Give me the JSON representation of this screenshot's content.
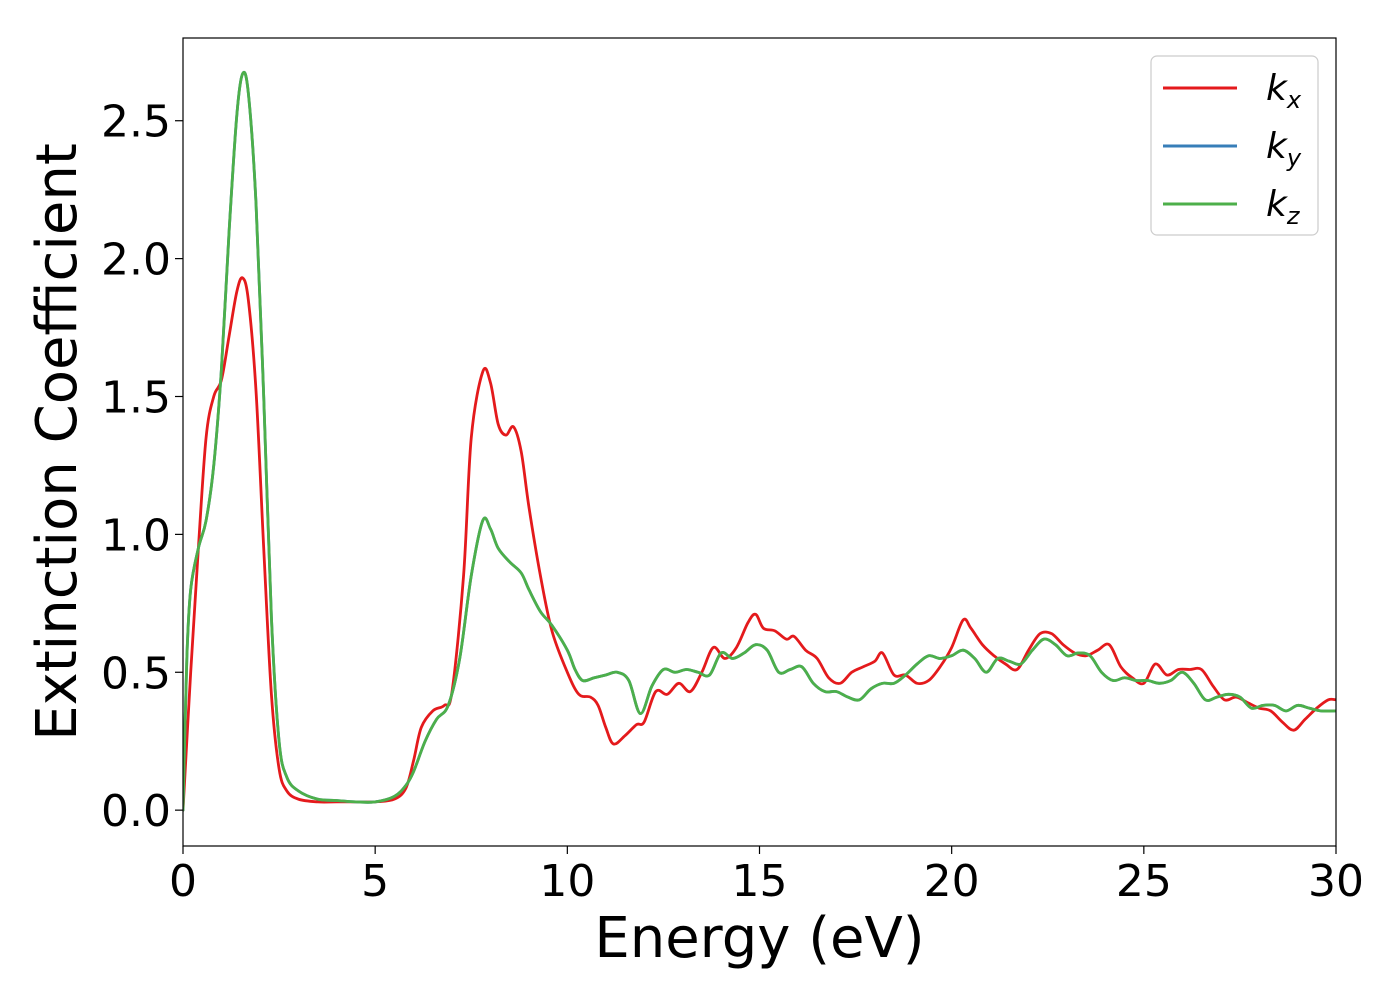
{
  "chart_data": {
    "type": "line",
    "title": "",
    "xlabel": "Energy (eV)",
    "ylabel": "Extinction Coefficient",
    "xlim": [
      0,
      30
    ],
    "ylim": [
      -0.13,
      2.8
    ],
    "xticks": [
      0,
      5,
      10,
      15,
      20,
      25,
      30
    ],
    "xtick_labels": [
      "0",
      "5",
      "10",
      "15",
      "20",
      "25",
      "30"
    ],
    "yticks": [
      0.0,
      0.5,
      1.0,
      1.5,
      2.0,
      2.5
    ],
    "ytick_labels": [
      "0.0",
      "0.5",
      "1.0",
      "1.5",
      "2.0",
      "2.5"
    ],
    "grid": false,
    "legend_position": "top-right",
    "series": [
      {
        "name": "k_x",
        "label_main": "k",
        "label_sub": "x",
        "color": "#e41a1c",
        "x": [
          0,
          0.2,
          0.4,
          0.6,
          0.8,
          1.0,
          1.2,
          1.4,
          1.55,
          1.7,
          1.9,
          2.1,
          2.3,
          2.5,
          2.7,
          3.0,
          3.5,
          4.0,
          4.5,
          5.0,
          5.5,
          5.8,
          6.0,
          6.2,
          6.5,
          6.8,
          7.0,
          7.3,
          7.5,
          7.8,
          8.0,
          8.2,
          8.4,
          8.6,
          8.8,
          9.0,
          9.3,
          9.6,
          10.0,
          10.3,
          10.6,
          10.8,
          11.0,
          11.2,
          11.5,
          11.8,
          12.0,
          12.3,
          12.6,
          12.9,
          13.2,
          13.5,
          13.8,
          14.1,
          14.4,
          14.7,
          14.9,
          15.1,
          15.4,
          15.7,
          15.9,
          16.2,
          16.5,
          16.8,
          17.1,
          17.4,
          17.7,
          18.0,
          18.2,
          18.5,
          18.8,
          19.1,
          19.4,
          19.7,
          20.0,
          20.3,
          20.5,
          20.8,
          21.1,
          21.4,
          21.7,
          22.0,
          22.3,
          22.6,
          22.9,
          23.2,
          23.5,
          23.8,
          24.1,
          24.4,
          24.7,
          25.0,
          25.3,
          25.6,
          25.9,
          26.2,
          26.5,
          26.8,
          27.1,
          27.4,
          27.7,
          28.0,
          28.3,
          28.6,
          28.9,
          29.2,
          29.5,
          29.8,
          30.0
        ],
        "y": [
          0.0,
          0.5,
          0.95,
          1.35,
          1.5,
          1.56,
          1.72,
          1.88,
          1.93,
          1.85,
          1.52,
          0.95,
          0.42,
          0.15,
          0.07,
          0.04,
          0.03,
          0.03,
          0.03,
          0.03,
          0.04,
          0.08,
          0.18,
          0.3,
          0.36,
          0.38,
          0.43,
          0.85,
          1.35,
          1.59,
          1.55,
          1.4,
          1.36,
          1.39,
          1.3,
          1.1,
          0.85,
          0.65,
          0.5,
          0.42,
          0.41,
          0.38,
          0.3,
          0.24,
          0.27,
          0.31,
          0.32,
          0.43,
          0.42,
          0.46,
          0.43,
          0.5,
          0.59,
          0.55,
          0.59,
          0.68,
          0.71,
          0.66,
          0.65,
          0.62,
          0.63,
          0.58,
          0.55,
          0.48,
          0.46,
          0.5,
          0.52,
          0.54,
          0.57,
          0.49,
          0.49,
          0.46,
          0.47,
          0.52,
          0.59,
          0.69,
          0.66,
          0.6,
          0.56,
          0.53,
          0.51,
          0.58,
          0.64,
          0.64,
          0.6,
          0.57,
          0.56,
          0.58,
          0.6,
          0.52,
          0.48,
          0.46,
          0.53,
          0.49,
          0.51,
          0.51,
          0.51,
          0.45,
          0.4,
          0.41,
          0.39,
          0.37,
          0.36,
          0.32,
          0.29,
          0.33,
          0.37,
          0.4,
          0.4
        ]
      },
      {
        "name": "k_y",
        "label_main": "k",
        "label_sub": "y",
        "color": "#377eb8",
        "x": [
          0,
          0.1,
          0.2,
          0.4,
          0.6,
          0.8,
          1.0,
          1.2,
          1.4,
          1.55,
          1.7,
          1.9,
          2.1,
          2.3,
          2.5,
          2.7,
          3.0,
          3.5,
          4.0,
          4.5,
          5.0,
          5.5,
          5.8,
          6.0,
          6.3,
          6.6,
          6.9,
          7.2,
          7.5,
          7.8,
          8.0,
          8.2,
          8.5,
          8.8,
          9.0,
          9.3,
          9.6,
          10.0,
          10.2,
          10.4,
          10.7,
          11.0,
          11.3,
          11.6,
          11.9,
          12.2,
          12.5,
          12.8,
          13.1,
          13.4,
          13.7,
          14.0,
          14.3,
          14.6,
          14.9,
          15.2,
          15.5,
          15.8,
          16.1,
          16.4,
          16.7,
          17.0,
          17.3,
          17.6,
          17.9,
          18.2,
          18.5,
          18.8,
          19.1,
          19.4,
          19.7,
          20.0,
          20.3,
          20.6,
          20.9,
          21.2,
          21.5,
          21.8,
          22.1,
          22.4,
          22.7,
          23.0,
          23.3,
          23.6,
          23.9,
          24.2,
          24.5,
          24.8,
          25.1,
          25.4,
          25.7,
          26.0,
          26.3,
          26.6,
          26.9,
          27.2,
          27.5,
          27.8,
          28.1,
          28.4,
          28.7,
          29.0,
          29.3,
          29.6,
          30.0
        ],
        "y": [
          0.0,
          0.55,
          0.8,
          0.95,
          1.05,
          1.25,
          1.6,
          2.1,
          2.52,
          2.67,
          2.6,
          2.2,
          1.5,
          0.7,
          0.25,
          0.12,
          0.07,
          0.04,
          0.035,
          0.03,
          0.03,
          0.05,
          0.09,
          0.14,
          0.25,
          0.33,
          0.38,
          0.55,
          0.85,
          1.05,
          1.02,
          0.95,
          0.9,
          0.86,
          0.8,
          0.72,
          0.67,
          0.58,
          0.51,
          0.47,
          0.48,
          0.49,
          0.5,
          0.47,
          0.35,
          0.45,
          0.51,
          0.5,
          0.51,
          0.5,
          0.49,
          0.57,
          0.55,
          0.57,
          0.6,
          0.58,
          0.5,
          0.51,
          0.52,
          0.46,
          0.43,
          0.43,
          0.41,
          0.4,
          0.44,
          0.46,
          0.46,
          0.49,
          0.53,
          0.56,
          0.55,
          0.56,
          0.58,
          0.55,
          0.5,
          0.55,
          0.54,
          0.53,
          0.58,
          0.62,
          0.6,
          0.56,
          0.57,
          0.56,
          0.5,
          0.47,
          0.48,
          0.47,
          0.47,
          0.46,
          0.47,
          0.5,
          0.46,
          0.4,
          0.41,
          0.42,
          0.41,
          0.37,
          0.38,
          0.38,
          0.36,
          0.38,
          0.37,
          0.36,
          0.36
        ]
      },
      {
        "name": "k_z",
        "label_main": "k",
        "label_sub": "z",
        "color": "#4daf4a",
        "x": [
          0,
          0.1,
          0.2,
          0.4,
          0.6,
          0.8,
          1.0,
          1.2,
          1.4,
          1.55,
          1.7,
          1.9,
          2.1,
          2.3,
          2.5,
          2.7,
          3.0,
          3.5,
          4.0,
          4.5,
          5.0,
          5.5,
          5.8,
          6.0,
          6.3,
          6.6,
          6.9,
          7.2,
          7.5,
          7.8,
          8.0,
          8.2,
          8.5,
          8.8,
          9.0,
          9.3,
          9.6,
          10.0,
          10.2,
          10.4,
          10.7,
          11.0,
          11.3,
          11.6,
          11.9,
          12.2,
          12.5,
          12.8,
          13.1,
          13.4,
          13.7,
          14.0,
          14.3,
          14.6,
          14.9,
          15.2,
          15.5,
          15.8,
          16.1,
          16.4,
          16.7,
          17.0,
          17.3,
          17.6,
          17.9,
          18.2,
          18.5,
          18.8,
          19.1,
          19.4,
          19.7,
          20.0,
          20.3,
          20.6,
          20.9,
          21.2,
          21.5,
          21.8,
          22.1,
          22.4,
          22.7,
          23.0,
          23.3,
          23.6,
          23.9,
          24.2,
          24.5,
          24.8,
          25.1,
          25.4,
          25.7,
          26.0,
          26.3,
          26.6,
          26.9,
          27.2,
          27.5,
          27.8,
          28.1,
          28.4,
          28.7,
          29.0,
          29.3,
          29.6,
          30.0
        ],
        "y": [
          0.0,
          0.55,
          0.8,
          0.95,
          1.05,
          1.25,
          1.6,
          2.1,
          2.52,
          2.67,
          2.6,
          2.2,
          1.5,
          0.7,
          0.25,
          0.12,
          0.07,
          0.04,
          0.035,
          0.03,
          0.03,
          0.05,
          0.09,
          0.14,
          0.25,
          0.33,
          0.38,
          0.55,
          0.85,
          1.05,
          1.02,
          0.95,
          0.9,
          0.86,
          0.8,
          0.72,
          0.67,
          0.58,
          0.51,
          0.47,
          0.48,
          0.49,
          0.5,
          0.47,
          0.35,
          0.45,
          0.51,
          0.5,
          0.51,
          0.5,
          0.49,
          0.57,
          0.55,
          0.57,
          0.6,
          0.58,
          0.5,
          0.51,
          0.52,
          0.46,
          0.43,
          0.43,
          0.41,
          0.4,
          0.44,
          0.46,
          0.46,
          0.49,
          0.53,
          0.56,
          0.55,
          0.56,
          0.58,
          0.55,
          0.5,
          0.55,
          0.54,
          0.53,
          0.58,
          0.62,
          0.6,
          0.56,
          0.57,
          0.56,
          0.5,
          0.47,
          0.48,
          0.47,
          0.47,
          0.46,
          0.47,
          0.5,
          0.46,
          0.4,
          0.41,
          0.42,
          0.41,
          0.37,
          0.38,
          0.38,
          0.36,
          0.38,
          0.37,
          0.36,
          0.36
        ]
      }
    ]
  }
}
